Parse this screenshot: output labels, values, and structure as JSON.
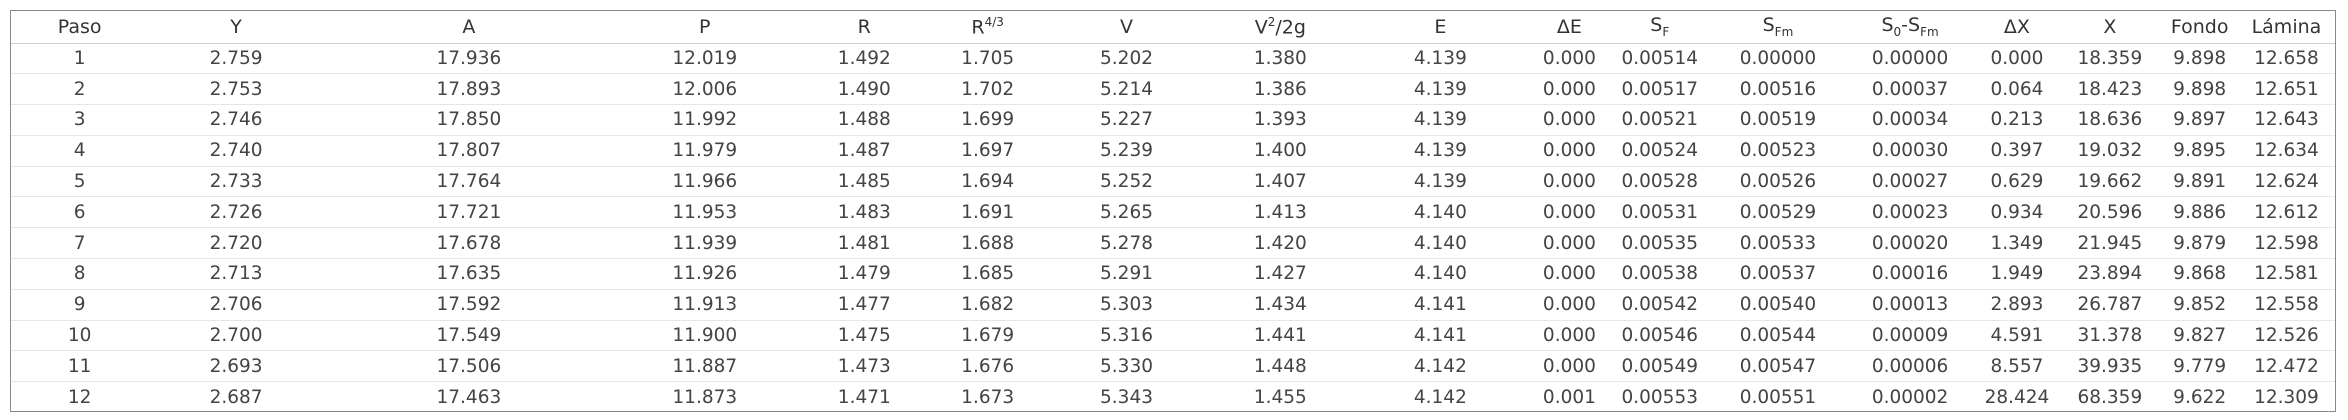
{
  "table": {
    "headers": [
      {
        "main": "Paso"
      },
      {
        "main": "Y"
      },
      {
        "main": "A"
      },
      {
        "main": "P"
      },
      {
        "main": "R"
      },
      {
        "main": "R",
        "sup": "4/3"
      },
      {
        "main": "V"
      },
      {
        "main": "V",
        "sup": "2",
        "tail": "/2g"
      },
      {
        "main": "E"
      },
      {
        "main": "ΔE"
      },
      {
        "main": "S",
        "sub": "F"
      },
      {
        "main": "S",
        "sub": "Fm"
      },
      {
        "main": "S",
        "sub": "0",
        "tail": "-S",
        "sub2": "Fm"
      },
      {
        "main": "ΔX"
      },
      {
        "main": "X"
      },
      {
        "main": "Fondo"
      },
      {
        "main": "Lámina"
      }
    ],
    "rows": [
      [
        "1",
        "2.759",
        "17.936",
        "12.019",
        "1.492",
        "1.705",
        "5.202",
        "1.380",
        "4.139",
        "0.000",
        "0.00514",
        "0.00000",
        "0.00000",
        "0.000",
        "18.359",
        "9.898",
        "12.658"
      ],
      [
        "2",
        "2.753",
        "17.893",
        "12.006",
        "1.490",
        "1.702",
        "5.214",
        "1.386",
        "4.139",
        "0.000",
        "0.00517",
        "0.00516",
        "0.00037",
        "0.064",
        "18.423",
        "9.898",
        "12.651"
      ],
      [
        "3",
        "2.746",
        "17.850",
        "11.992",
        "1.488",
        "1.699",
        "5.227",
        "1.393",
        "4.139",
        "0.000",
        "0.00521",
        "0.00519",
        "0.00034",
        "0.213",
        "18.636",
        "9.897",
        "12.643"
      ],
      [
        "4",
        "2.740",
        "17.807",
        "11.979",
        "1.487",
        "1.697",
        "5.239",
        "1.400",
        "4.139",
        "0.000",
        "0.00524",
        "0.00523",
        "0.00030",
        "0.397",
        "19.032",
        "9.895",
        "12.634"
      ],
      [
        "5",
        "2.733",
        "17.764",
        "11.966",
        "1.485",
        "1.694",
        "5.252",
        "1.407",
        "4.139",
        "0.000",
        "0.00528",
        "0.00526",
        "0.00027",
        "0.629",
        "19.662",
        "9.891",
        "12.624"
      ],
      [
        "6",
        "2.726",
        "17.721",
        "11.953",
        "1.483",
        "1.691",
        "5.265",
        "1.413",
        "4.140",
        "0.000",
        "0.00531",
        "0.00529",
        "0.00023",
        "0.934",
        "20.596",
        "9.886",
        "12.612"
      ],
      [
        "7",
        "2.720",
        "17.678",
        "11.939",
        "1.481",
        "1.688",
        "5.278",
        "1.420",
        "4.140",
        "0.000",
        "0.00535",
        "0.00533",
        "0.00020",
        "1.349",
        "21.945",
        "9.879",
        "12.598"
      ],
      [
        "8",
        "2.713",
        "17.635",
        "11.926",
        "1.479",
        "1.685",
        "5.291",
        "1.427",
        "4.140",
        "0.000",
        "0.00538",
        "0.00537",
        "0.00016",
        "1.949",
        "23.894",
        "9.868",
        "12.581"
      ],
      [
        "9",
        "2.706",
        "17.592",
        "11.913",
        "1.477",
        "1.682",
        "5.303",
        "1.434",
        "4.141",
        "0.000",
        "0.00542",
        "0.00540",
        "0.00013",
        "2.893",
        "26.787",
        "9.852",
        "12.558"
      ],
      [
        "10",
        "2.700",
        "17.549",
        "11.900",
        "1.475",
        "1.679",
        "5.316",
        "1.441",
        "4.141",
        "0.000",
        "0.00546",
        "0.00544",
        "0.00009",
        "4.591",
        "31.378",
        "9.827",
        "12.526"
      ],
      [
        "11",
        "2.693",
        "17.506",
        "11.887",
        "1.473",
        "1.676",
        "5.330",
        "1.448",
        "4.142",
        "0.000",
        "0.00549",
        "0.00547",
        "0.00006",
        "8.557",
        "39.935",
        "9.779",
        "12.472"
      ],
      [
        "12",
        "2.687",
        "17.463",
        "11.873",
        "1.471",
        "1.673",
        "5.343",
        "1.455",
        "4.142",
        "0.001",
        "0.00553",
        "0.00551",
        "0.00002",
        "28.424",
        "68.359",
        "9.622",
        "12.309"
      ]
    ]
  }
}
